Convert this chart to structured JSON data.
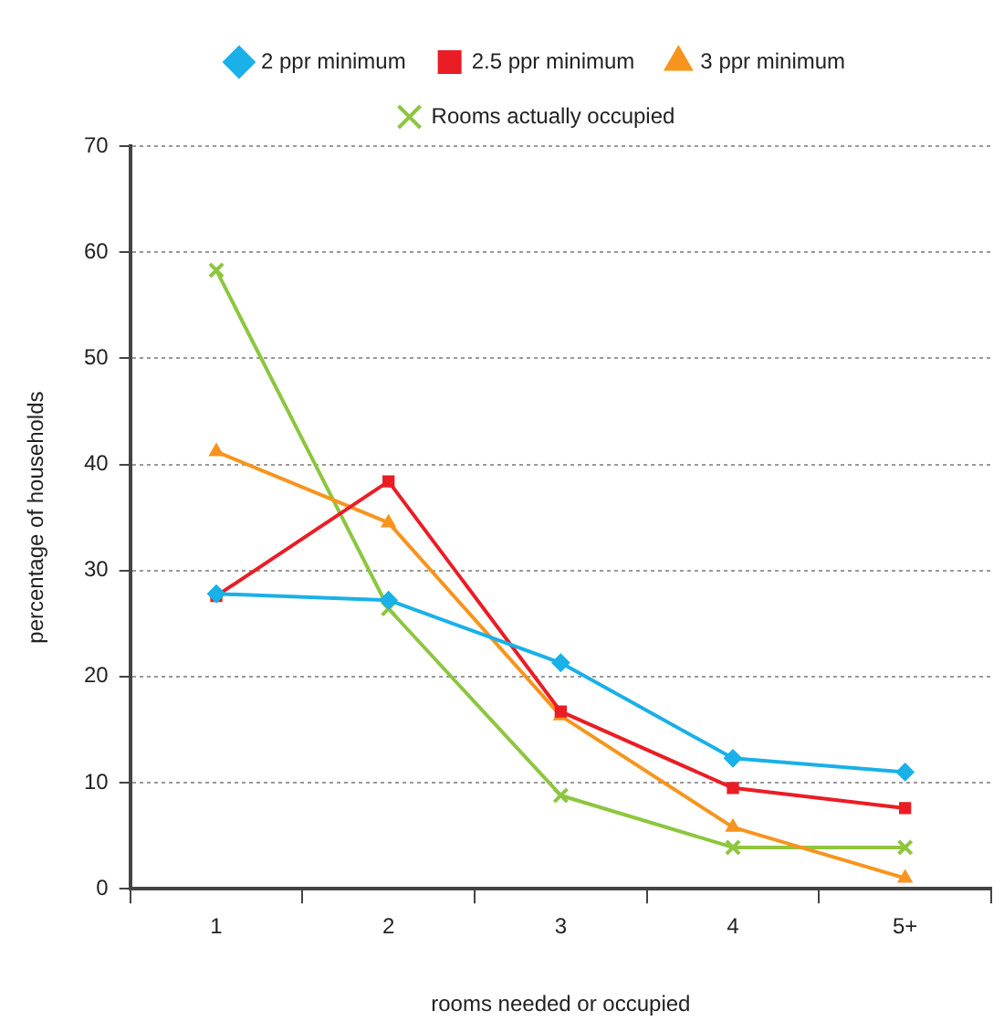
{
  "chart_data": {
    "type": "line",
    "xlabel": "rooms needed or occupied",
    "ylabel": "percentage of households",
    "categories": [
      "1",
      "2",
      "3",
      "4",
      "5+"
    ],
    "series": [
      {
        "name": "2 ppr minimum",
        "color": "#1ab0e8",
        "marker": "diamond",
        "values": [
          27.8,
          27.2,
          21.3,
          12.3,
          11.0
        ]
      },
      {
        "name": "2.5 ppr minimum",
        "color": "#ea1d25",
        "marker": "square",
        "values": [
          27.6,
          38.4,
          16.7,
          9.5,
          7.6
        ]
      },
      {
        "name": "3 ppr minimum",
        "color": "#f7941d",
        "marker": "triangle",
        "values": [
          41.2,
          34.5,
          16.3,
          5.8,
          1.0
        ]
      },
      {
        "name": "Rooms actually occupied",
        "color": "#8dc63f",
        "marker": "cross",
        "values": [
          58.3,
          26.4,
          8.8,
          3.9,
          3.9
        ]
      }
    ],
    "ylim": [
      0,
      70
    ],
    "yticks": [
      0,
      10,
      20,
      30,
      40,
      50,
      60,
      70
    ],
    "grid": "y",
    "legend": "top",
    "line_style": "solid"
  }
}
